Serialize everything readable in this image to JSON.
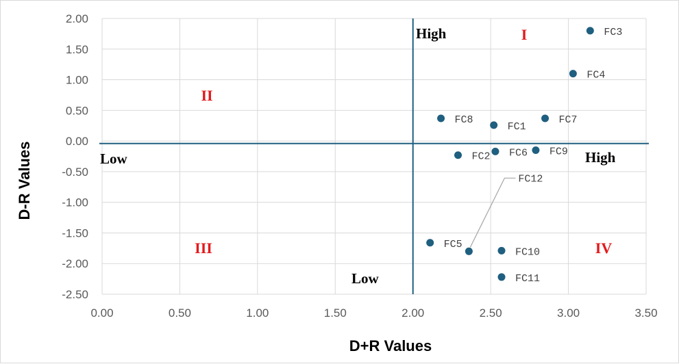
{
  "chart_data": {
    "type": "scatter",
    "xlabel": "D+R Values",
    "ylabel": "D-R Values",
    "xlim": [
      0,
      3.5
    ],
    "ylim": [
      -2.5,
      2.0
    ],
    "x_ticks": [
      "0.00",
      "0.50",
      "1.00",
      "1.50",
      "2.00",
      "2.50",
      "3.00",
      "3.50"
    ],
    "y_ticks": [
      "2.00",
      "1.50",
      "1.00",
      "0.50",
      "0.00",
      "-0.50",
      "-1.00",
      "-1.50",
      "-2.00",
      "-2.50"
    ],
    "grid": true,
    "marker_color": "#1f5f7f",
    "divider_color": "#1f5f7f",
    "divider_x": 2.0,
    "divider_y": -0.04,
    "points": [
      {
        "label": "FC1",
        "x": 2.52,
        "y": 0.26
      },
      {
        "label": "FC2",
        "x": 2.29,
        "y": -0.23
      },
      {
        "label": "FC3",
        "x": 3.14,
        "y": 1.8
      },
      {
        "label": "FC4",
        "x": 3.03,
        "y": 1.1
      },
      {
        "label": "FC5",
        "x": 2.11,
        "y": -1.66
      },
      {
        "label": "FC6",
        "x": 2.53,
        "y": -0.17
      },
      {
        "label": "FC7",
        "x": 2.85,
        "y": 0.37
      },
      {
        "label": "FC8",
        "x": 2.18,
        "y": 0.37
      },
      {
        "label": "FC9",
        "x": 2.79,
        "y": -0.15
      },
      {
        "label": "FC10",
        "x": 2.57,
        "y": -1.79
      },
      {
        "label": "FC11",
        "x": 2.57,
        "y": -2.22
      },
      {
        "label": "FC12",
        "x": 2.36,
        "y": -1.8
      }
    ],
    "quadrant_labels": [
      "I",
      "II",
      "III",
      "IV"
    ],
    "region_labels": {
      "x_low": "Low",
      "x_high": "High",
      "y_high": "High",
      "y_low": "Low"
    },
    "quadrant_color": "#e31a1c"
  }
}
